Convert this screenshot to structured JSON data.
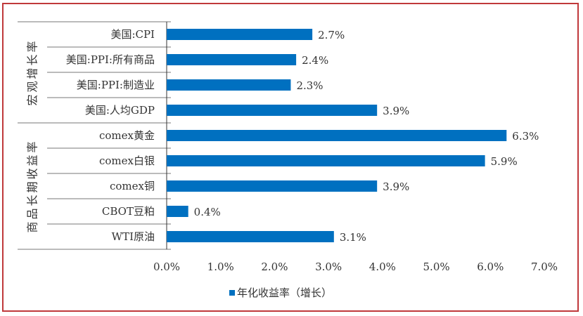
{
  "chart_data": {
    "type": "bar",
    "orientation": "horizontal",
    "groups": [
      {
        "label": "宏观增长率",
        "categories": [
          "美国:CPI",
          "美国:PPI:所有商品",
          "美国:PPI:制造业",
          "美国:人均GDP"
        ]
      },
      {
        "label": "商品长期收益率",
        "categories": [
          "comex黄金",
          "comex白银",
          "comex铜",
          "CBOT豆粕",
          "WTI原油"
        ]
      }
    ],
    "categories": [
      "美国:CPI",
      "美国:PPI:所有商品",
      "美国:PPI:制造业",
      "美国:人均GDP",
      "comex黄金",
      "comex白银",
      "comex铜",
      "CBOT豆粕",
      "WTI原油"
    ],
    "series": [
      {
        "name": "年化收益率（增长）",
        "values": [
          2.7,
          2.4,
          2.3,
          3.9,
          6.3,
          5.9,
          3.9,
          0.4,
          3.1
        ],
        "color": "#0070C0"
      }
    ],
    "data_labels": [
      "2.7%",
      "2.4%",
      "2.3%",
      "3.9%",
      "6.3%",
      "5.9%",
      "3.9%",
      "0.4%",
      "3.1%"
    ],
    "xlim": [
      0,
      7
    ],
    "x_ticks": [
      "0.0%",
      "1.0%",
      "2.0%",
      "3.0%",
      "4.0%",
      "5.0%",
      "6.0%",
      "7.0%"
    ],
    "grid": false,
    "legend_position": "bottom",
    "legend_label": "年化收益率（增长）"
  }
}
